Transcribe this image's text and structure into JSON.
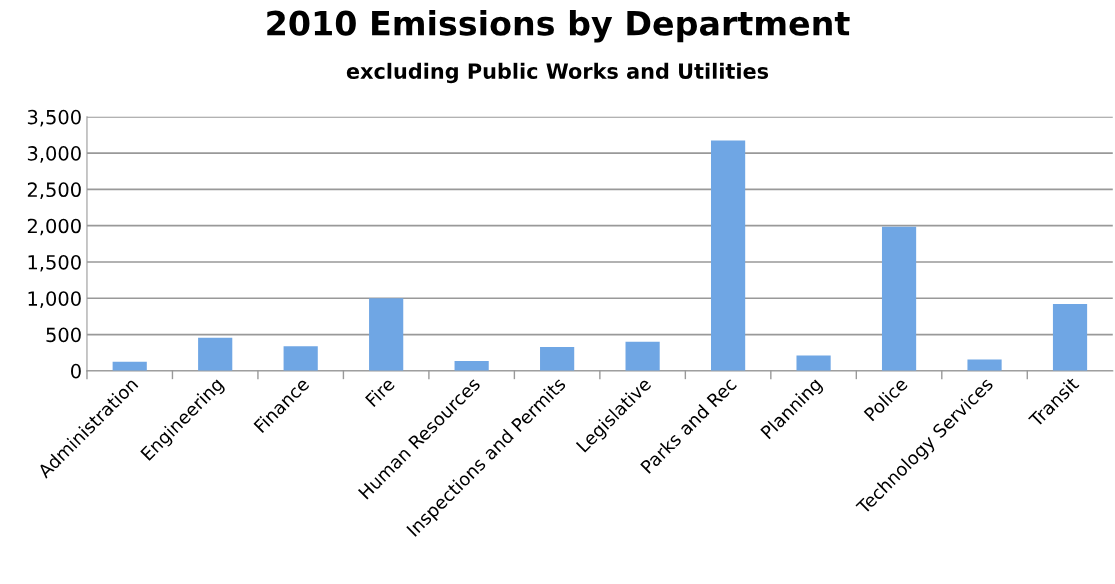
{
  "chart_data": {
    "type": "bar",
    "title": "2010 Emissions by Department",
    "subtitle": "excluding Public Works and Utilities",
    "categories": [
      "Administration",
      "Engineering",
      "Finance",
      "Fire",
      "Human Resources",
      "Inspections and Permits",
      "Legislative",
      "Parks and Rec",
      "Planning",
      "Police",
      "Technology Services",
      "Transit"
    ],
    "values": [
      125,
      455,
      340,
      1000,
      135,
      330,
      400,
      3175,
      210,
      1985,
      155,
      920
    ],
    "color": "#6fa6e4",
    "ylim": [
      0,
      3500
    ],
    "yticks": [
      {
        "value": 0,
        "label": "0"
      },
      {
        "value": 500,
        "label": "500"
      },
      {
        "value": 1000,
        "label": "1,000"
      },
      {
        "value": 1500,
        "label": "1,500"
      },
      {
        "value": 2000,
        "label": "2,000"
      },
      {
        "value": 2500,
        "label": "2,500"
      },
      {
        "value": 3000,
        "label": "3,000"
      },
      {
        "value": 3500,
        "label": "3,500"
      }
    ],
    "grid": "y",
    "legend": false
  }
}
